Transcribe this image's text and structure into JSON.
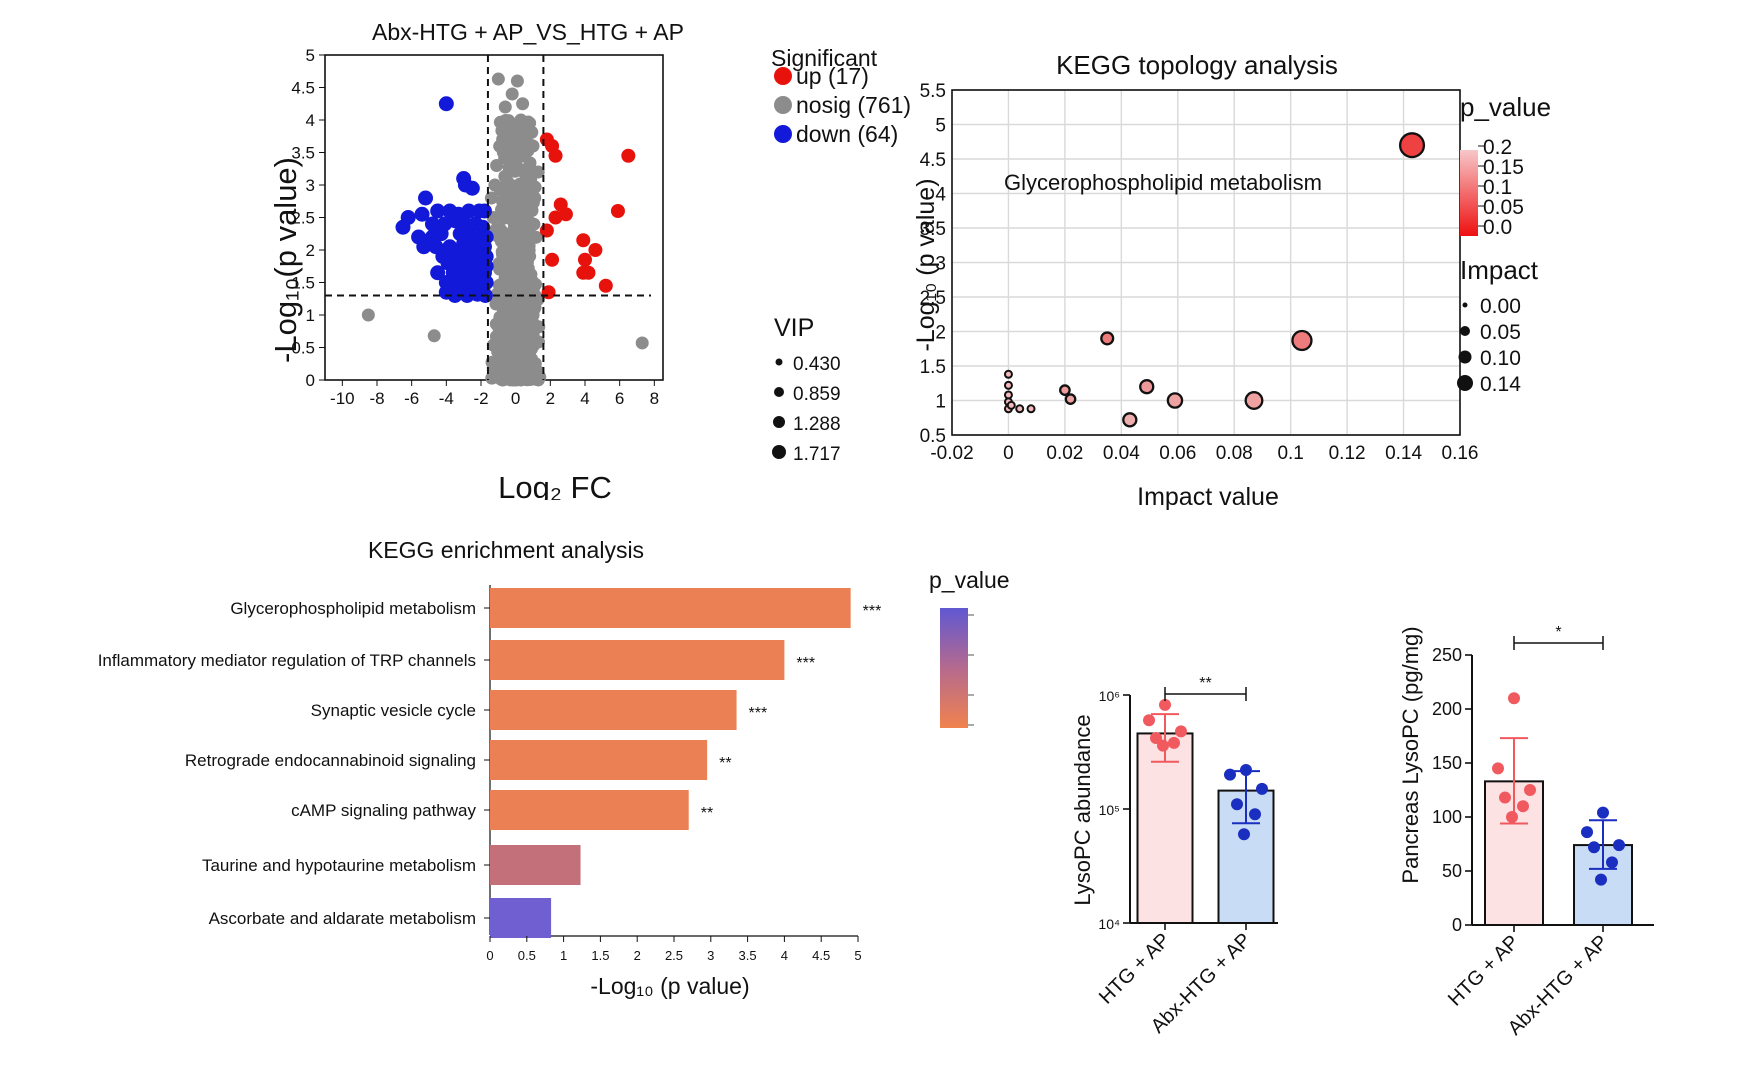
{
  "chart_data": [
    {
      "id": "volcano",
      "type": "scatter",
      "title": "Abx-HTG + AP_VS_HTG + AP",
      "xlabel": "Log₂ FC",
      "ylabel": "-Log₁₀(p value)",
      "xlim": [
        -11,
        8.5
      ],
      "ylim": [
        0,
        5
      ],
      "xticks": [
        -10,
        -8,
        -6,
        -4,
        -2,
        0,
        2,
        4,
        6,
        8
      ],
      "yticks": [
        0,
        0.5,
        1,
        1.5,
        2,
        2.5,
        3,
        3.5,
        4,
        4.5,
        5
      ],
      "threshold_lines": {
        "x": [
          -1.6,
          1.6
        ],
        "y": 1.3
      },
      "legend_title": "Significant",
      "legend": [
        {
          "label": "up (17)",
          "color": "#e8120c"
        },
        {
          "label": "nosig (761)",
          "color": "#8c8c8c"
        },
        {
          "label": "down (64)",
          "color": "#1219d8"
        }
      ],
      "vip_title": "VIP",
      "vip_legend": [
        "0.430",
        "0.859",
        "1.288",
        "1.717"
      ],
      "up": [
        [
          1.8,
          3.7
        ],
        [
          2.1,
          3.6
        ],
        [
          2.3,
          3.45
        ],
        [
          6.5,
          3.45
        ],
        [
          2.6,
          2.7
        ],
        [
          2.9,
          2.55
        ],
        [
          5.9,
          2.6
        ],
        [
          1.8,
          2.3
        ],
        [
          3.9,
          2.15
        ],
        [
          4.6,
          2.0
        ],
        [
          2.1,
          1.85
        ],
        [
          4.0,
          1.85
        ],
        [
          4.2,
          1.65
        ],
        [
          3.9,
          1.65
        ],
        [
          5.2,
          1.45
        ],
        [
          1.9,
          1.35
        ],
        [
          2.3,
          2.5
        ]
      ],
      "down": [
        [
          -4.0,
          4.25
        ],
        [
          -5.2,
          2.8
        ],
        [
          -3.0,
          3.1
        ],
        [
          -2.9,
          3.0
        ],
        [
          -2.5,
          2.95
        ],
        [
          -6.2,
          2.5
        ],
        [
          -5.4,
          2.55
        ],
        [
          -6.5,
          2.35
        ],
        [
          -4.5,
          2.6
        ],
        [
          -3.8,
          2.6
        ],
        [
          -3.3,
          2.55
        ],
        [
          -2.7,
          2.6
        ],
        [
          -2.1,
          2.6
        ],
        [
          -1.8,
          2.6
        ],
        [
          -4.8,
          2.4
        ],
        [
          -4.1,
          2.4
        ],
        [
          -3.5,
          2.45
        ],
        [
          -2.9,
          2.4
        ],
        [
          -2.3,
          2.4
        ],
        [
          -1.9,
          2.35
        ],
        [
          -5.6,
          2.2
        ],
        [
          -4.8,
          2.2
        ],
        [
          -4.3,
          2.25
        ],
        [
          -3.2,
          2.25
        ],
        [
          -2.6,
          2.2
        ],
        [
          -2.0,
          2.2
        ],
        [
          -1.7,
          2.2
        ],
        [
          -5.3,
          2.05
        ],
        [
          -4.6,
          2.05
        ],
        [
          -3.8,
          2.05
        ],
        [
          -3.0,
          2.1
        ],
        [
          -2.4,
          2.1
        ],
        [
          -1.8,
          2.05
        ],
        [
          -4.2,
          1.9
        ],
        [
          -3.5,
          1.95
        ],
        [
          -2.8,
          1.95
        ],
        [
          -2.2,
          1.95
        ],
        [
          -1.7,
          1.9
        ],
        [
          -3.9,
          1.8
        ],
        [
          -3.2,
          1.8
        ],
        [
          -2.5,
          1.8
        ],
        [
          -2.0,
          1.8
        ],
        [
          -1.7,
          1.75
        ],
        [
          -4.5,
          1.65
        ],
        [
          -3.6,
          1.65
        ],
        [
          -2.9,
          1.65
        ],
        [
          -2.3,
          1.65
        ],
        [
          -1.8,
          1.65
        ],
        [
          -4.0,
          1.5
        ],
        [
          -3.3,
          1.5
        ],
        [
          -2.6,
          1.55
        ],
        [
          -2.1,
          1.55
        ],
        [
          -1.7,
          1.5
        ],
        [
          -3.7,
          1.4
        ],
        [
          -2.9,
          1.4
        ],
        [
          -2.3,
          1.45
        ],
        [
          -4.0,
          1.35
        ],
        [
          -3.2,
          1.35
        ],
        [
          -2.5,
          1.4
        ],
        [
          -1.9,
          1.4
        ],
        [
          -3.5,
          1.3
        ],
        [
          -2.8,
          1.3
        ],
        [
          -2.2,
          1.32
        ],
        [
          -1.75,
          1.3
        ]
      ],
      "nosig_outliers": [
        [
          -8.5,
          1.0
        ],
        [
          -4.7,
          0.68
        ],
        [
          7.3,
          0.57
        ],
        [
          -1.0,
          4.63
        ],
        [
          0.1,
          4.6
        ],
        [
          -0.2,
          4.4
        ],
        [
          0.4,
          4.25
        ],
        [
          -0.6,
          4.2
        ],
        [
          0.3,
          4.0
        ],
        [
          0.6,
          3.85
        ],
        [
          -0.4,
          3.75
        ],
        [
          -1.2,
          3.0
        ],
        [
          -1.4,
          2.8
        ],
        [
          -1.3,
          2.5
        ],
        [
          1.1,
          2.8
        ],
        [
          1.3,
          3.2
        ],
        [
          1.0,
          3.6
        ],
        [
          -1.1,
          3.3
        ]
      ],
      "nosig_count": 761
    },
    {
      "id": "topology",
      "type": "scatter",
      "title": "KEGG topology analysis",
      "xlabel": "Impact value",
      "ylabel": "-Log₁₀ (p value)",
      "xlim": [
        -0.02,
        0.16
      ],
      "ylim": [
        0.5,
        5.5
      ],
      "xticks": [
        "-0.02",
        "0",
        "0.02",
        "0.04",
        "0.06",
        "0.08",
        "0.1",
        "0.12",
        "0.14",
        "0.16"
      ],
      "yticks": [
        "0.5",
        "1",
        "1.5",
        "2",
        "2.5",
        "3",
        "3.5",
        "4",
        "4.5",
        "5",
        "5.5"
      ],
      "annotation": "Glycerophospholipid metabolism",
      "colorbar_title": "p_value",
      "colorbar_ticks": [
        "0.2",
        "0.15",
        "0.1",
        "0.05",
        "0.0"
      ],
      "size_title": "Impact",
      "size_ticks": [
        "0.00",
        "0.05",
        "0.10",
        "0.14"
      ],
      "points": [
        {
          "x": 0.143,
          "y": 4.7,
          "impact": 0.14
        },
        {
          "x": 0.104,
          "y": 1.87,
          "impact": 0.1
        },
        {
          "x": 0.035,
          "y": 1.9,
          "impact": 0.04
        },
        {
          "x": 0.049,
          "y": 1.2,
          "impact": 0.05
        },
        {
          "x": 0.059,
          "y": 1.0,
          "impact": 0.06
        },
        {
          "x": 0.087,
          "y": 1.0,
          "impact": 0.08
        },
        {
          "x": 0.043,
          "y": 0.72,
          "impact": 0.05
        },
        {
          "x": 0.02,
          "y": 1.15,
          "impact": 0.02
        },
        {
          "x": 0.022,
          "y": 1.02,
          "impact": 0.02
        },
        {
          "x": 0.0,
          "y": 1.38,
          "impact": 0.0
        },
        {
          "x": 0.0,
          "y": 1.22,
          "impact": 0.0
        },
        {
          "x": 0.0,
          "y": 1.08,
          "impact": 0.0
        },
        {
          "x": 0.0,
          "y": 0.98,
          "impact": 0.0
        },
        {
          "x": 0.0,
          "y": 0.88,
          "impact": 0.0
        },
        {
          "x": 0.004,
          "y": 0.88,
          "impact": 0.0
        },
        {
          "x": 0.008,
          "y": 0.88,
          "impact": 0.0
        },
        {
          "x": 0.001,
          "y": 0.93,
          "impact": 0.0
        }
      ]
    },
    {
      "id": "enrichment",
      "type": "bar",
      "orientation": "horizontal",
      "title": "KEGG enrichment analysis",
      "xlabel": "-Log₁₀ (p value)",
      "xlim": [
        0,
        5
      ],
      "xticks": [
        "0",
        "0.5",
        "1",
        "1.5",
        "2",
        "2.5",
        "3",
        "3.5",
        "4",
        "4.5",
        "5"
      ],
      "legend_title": "p_value",
      "bars": [
        {
          "label": "Glycerophospholipid metabolism",
          "value": 4.9,
          "sig": "***",
          "color": "#ec8055"
        },
        {
          "label": "Inflammatory mediator regulation of TRP channels",
          "value": 4.0,
          "sig": "***",
          "color": "#ec8055"
        },
        {
          "label": "Synaptic vesicle cycle",
          "value": 3.35,
          "sig": "***",
          "color": "#ec8055"
        },
        {
          "label": "Retrograde endocannabinoid signaling",
          "value": 2.95,
          "sig": "**",
          "color": "#ec8055"
        },
        {
          "label": "cAMP signaling pathway",
          "value": 2.7,
          "sig": "**",
          "color": "#ec8055"
        },
        {
          "label": "Taurine and hypotaurine metabolism",
          "value": 1.23,
          "sig": "",
          "color": "#c4707a"
        },
        {
          "label": "Ascorbate and aldarate metabolism",
          "value": 0.83,
          "sig": "",
          "color": "#6f5fd0"
        }
      ]
    },
    {
      "id": "lysopc_abundance",
      "type": "bar",
      "ylabel": "LysoPC abundance",
      "yscale": "log",
      "ylim": [
        10000,
        1000000
      ],
      "yticks": [
        "10⁴",
        "10⁵",
        "10⁶"
      ],
      "significance": "**",
      "groups": [
        {
          "label": "HTG + AP",
          "mean": 460000,
          "sd_low": 260000,
          "sd_high": 680000,
          "fill": "#fde2e4",
          "dot": "#f05a5f",
          "points": [
            820000,
            600000,
            480000,
            420000,
            380000,
            360000
          ]
        },
        {
          "label": "Abx-HTG + AP",
          "mean": 145000,
          "sd_low": 75000,
          "sd_high": 215000,
          "fill": "#c9dcf6",
          "dot": "#1a2ec0",
          "points": [
            220000,
            200000,
            150000,
            110000,
            90000,
            60000
          ]
        }
      ]
    },
    {
      "id": "pancreas_lysopc",
      "type": "bar",
      "ylabel": "Pancreas LysoPC (pg/mg)",
      "ylim": [
        0,
        250
      ],
      "yticks": [
        "0",
        "50",
        "100",
        "150",
        "200",
        "250"
      ],
      "significance": "*",
      "groups": [
        {
          "label": "HTG + AP",
          "mean": 133,
          "sd_low": 94,
          "sd_high": 173,
          "fill": "#fde2e4",
          "dot": "#f05a5f",
          "points": [
            210,
            145,
            125,
            118,
            110,
            100
          ]
        },
        {
          "label": "Abx-HTG + AP",
          "mean": 74,
          "sd_low": 52,
          "sd_high": 97,
          "fill": "#c9dcf6",
          "dot": "#1a2ec0",
          "points": [
            104,
            86,
            74,
            72,
            58,
            42
          ]
        }
      ]
    }
  ]
}
